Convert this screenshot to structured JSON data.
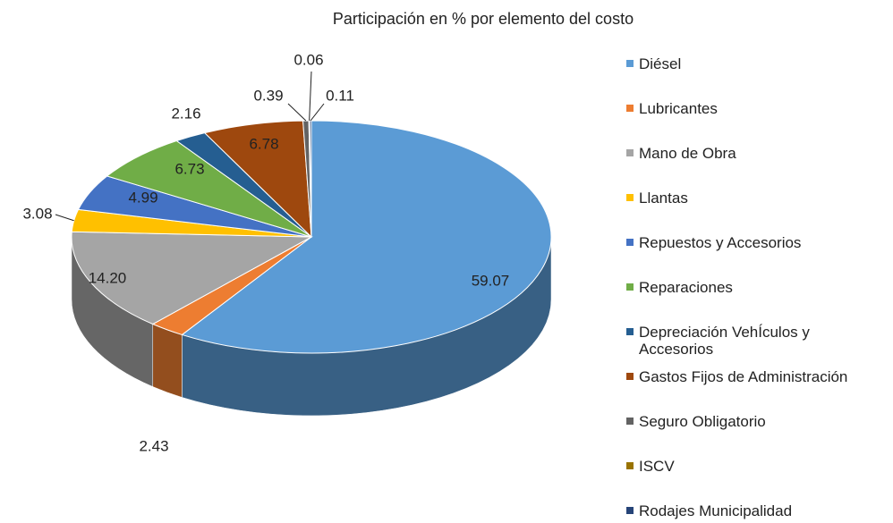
{
  "chart_data": {
    "type": "pie3d",
    "title": "Participación en % por elemento del costo",
    "categories": [
      "Diésel",
      "Lubricantes",
      "Mano de Obra",
      "Llantas",
      "Repuestos y Accesorios",
      "Reparaciones",
      "Depreciación VehÍculos y Accesorios",
      "Gastos Fijos de Administración",
      "Seguro Obligatorio",
      "ISCV",
      "Rodajes Municipalidad"
    ],
    "values": [
      59.07,
      2.43,
      14.2,
      3.08,
      4.99,
      6.73,
      2.16,
      6.78,
      0.39,
      0.06,
      0.11
    ],
    "value_labels": [
      "59.07",
      "2.43",
      "14.20",
      "3.08",
      "4.99",
      "6.73",
      "2.16",
      "6.78",
      "0.39",
      "0.06",
      "0.11"
    ],
    "colors": [
      "#5b9bd5",
      "#ed7d31",
      "#a5a5a5",
      "#ffc000",
      "#4472c4",
      "#70ad47",
      "#255e91",
      "#9e480e",
      "#636363",
      "#997300",
      "#264478"
    ],
    "legend": "right"
  }
}
